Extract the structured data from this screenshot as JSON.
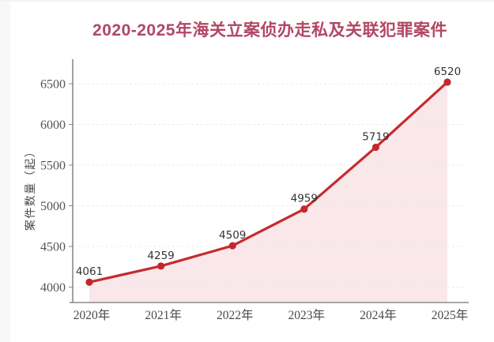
{
  "page": {
    "background": "#ffffff"
  },
  "chart_data": {
    "type": "line",
    "area": true,
    "title": "2020-2025年海关立案侦办走私及关联犯罪案件",
    "categories": [
      "2020年",
      "2021年",
      "2022年",
      "2023年",
      "2024年",
      "2025年"
    ],
    "values": [
      4061,
      4259,
      4509,
      4959,
      5719,
      6520
    ],
    "xlabel": "",
    "ylabel": "案件数量（起）",
    "ylim": [
      4000,
      6500
    ],
    "yticks": [
      4000,
      4500,
      5000,
      5500,
      6000,
      6500
    ],
    "grid": true,
    "legend_position": "none",
    "colors": {
      "line": "#c62b2e",
      "point": "#c2282c",
      "area_fill": "#f9e7e9",
      "title": "#b24765",
      "axis": "#8a8a8a",
      "grid": "#ebebeb",
      "tick_label": "#555555",
      "x_tick_label": "#4a4a4a",
      "value_label": "#333333"
    }
  }
}
